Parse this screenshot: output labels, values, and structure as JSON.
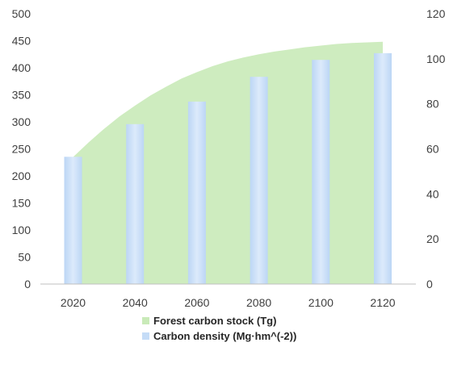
{
  "chart_data": {
    "type": "bar",
    "title": "",
    "xlabel": "",
    "ylabel": "",
    "x": [
      2020,
      2040,
      2060,
      2080,
      2100,
      2120
    ],
    "x_tick_labels": [
      "2020",
      "2040",
      "2060",
      "2080",
      "2100",
      "2120"
    ],
    "ylim_left": [
      0,
      500
    ],
    "y_left_ticks": [
      0,
      50,
      100,
      150,
      200,
      250,
      300,
      350,
      400,
      450,
      500
    ],
    "ylim_right": [
      0,
      120
    ],
    "y_right_ticks": [
      0,
      20,
      40,
      60,
      80,
      100,
      120
    ],
    "grid": false,
    "legend_position": "bottom",
    "series": [
      {
        "name": "Forest carbon stock (Tg)",
        "type": "area",
        "axis": "left",
        "color": "#c9eab8",
        "x": [
          2020,
          2025,
          2030,
          2035,
          2040,
          2045,
          2050,
          2055,
          2060,
          2065,
          2070,
          2075,
          2080,
          2085,
          2090,
          2095,
          2100,
          2105,
          2110,
          2115,
          2120
        ],
        "values": [
          235,
          262,
          287,
          310,
          330,
          349,
          365,
          380,
          392,
          403,
          412,
          419,
          425,
          430,
          434,
          438,
          441,
          444,
          446,
          447,
          448
        ]
      },
      {
        "name": "Carbon density (Mg·hm^(-2))",
        "type": "bar",
        "axis": "right",
        "color": "#c5dcf7",
        "values": [
          56.5,
          71,
          81,
          92,
          99.5,
          102.5
        ]
      }
    ]
  }
}
